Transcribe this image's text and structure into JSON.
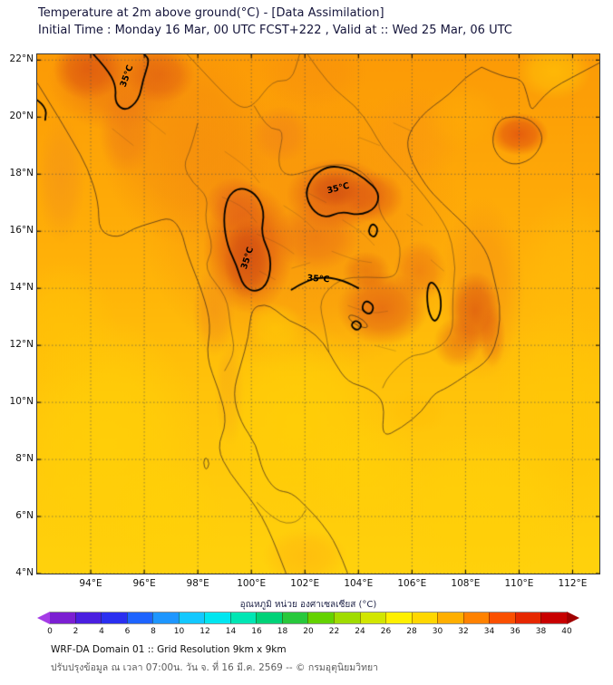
{
  "header": {
    "title": "Temperature at 2m above ground(°C) - [Data Assimilation]",
    "subtitle": "Initial Time : Monday 16 Mar, 00 UTC FCST+222 , Valid at :: Wed 25 Mar, 06 UTC"
  },
  "map": {
    "lon_range": [
      92.0,
      113.0
    ],
    "lat_range": [
      4.0,
      22.2
    ],
    "x_tick_values": [
      94,
      96,
      98,
      100,
      102,
      104,
      106,
      108,
      110,
      112
    ],
    "x_tick_labels": [
      "94°E",
      "96°E",
      "98°E",
      "100°E",
      "102°E",
      "104°E",
      "106°E",
      "108°E",
      "110°E",
      "112°E"
    ],
    "y_tick_values": [
      22,
      20,
      18,
      16,
      14,
      12,
      10,
      8,
      6,
      4
    ],
    "y_tick_labels": [
      "22°N",
      "20°N",
      "18°N",
      "16°N",
      "14°N",
      "12°N",
      "10°N",
      "8°N",
      "6°N",
      "4°N"
    ],
    "grid": true,
    "contour_level": "35°C",
    "contour_annotations": [
      {
        "text": "35°C",
        "lon": 99.85,
        "lat": 15.05,
        "rot": -72
      },
      {
        "text": "35°C",
        "lon": 103.25,
        "lat": 17.5,
        "rot": -14
      },
      {
        "text": "35°C",
        "lon": 102.5,
        "lat": 14.32,
        "rot": 4
      },
      {
        "text": "35°C",
        "lon": 95.35,
        "lat": 21.45,
        "rot": -70
      }
    ]
  },
  "colorbar": {
    "label": "อุณหภูมิ หน่วย องศาเซลเซียส (°C)",
    "tick_labels": [
      "0",
      "2",
      "4",
      "6",
      "8",
      "10",
      "12",
      "14",
      "16",
      "18",
      "20",
      "22",
      "24",
      "26",
      "28",
      "30",
      "32",
      "34",
      "36",
      "38",
      "40"
    ],
    "segment_colors": [
      "#7B1FD2",
      "#4A1FE0",
      "#2A2FF0",
      "#1E64FF",
      "#1E96FF",
      "#14C8FF",
      "#00E6F0",
      "#00E6B4",
      "#00D278",
      "#28C83C",
      "#64D200",
      "#A0DC00",
      "#D2E600",
      "#FFF000",
      "#FFD700",
      "#FFAF00",
      "#FF8200",
      "#FA5000",
      "#E62800",
      "#C80000"
    ],
    "left_arrow_color": "#A53CE6",
    "right_arrow_color": "#A00000"
  },
  "footer": {
    "line1": "WRF-DA Domain 01 :: Grid Resolution 9km x 9km",
    "line2": "ปรับปรุงข้อมูล ณ เวลา 07:00น. วัน จ. ที่ 16 มี.ค. 2569 -- © กรมอุตุนิยมวิทยา"
  },
  "theme": {
    "title_color": "#14143A",
    "hot_core_color": "#C94510",
    "warm_color": "#F5870F",
    "sea_color": "#FFD20C"
  }
}
